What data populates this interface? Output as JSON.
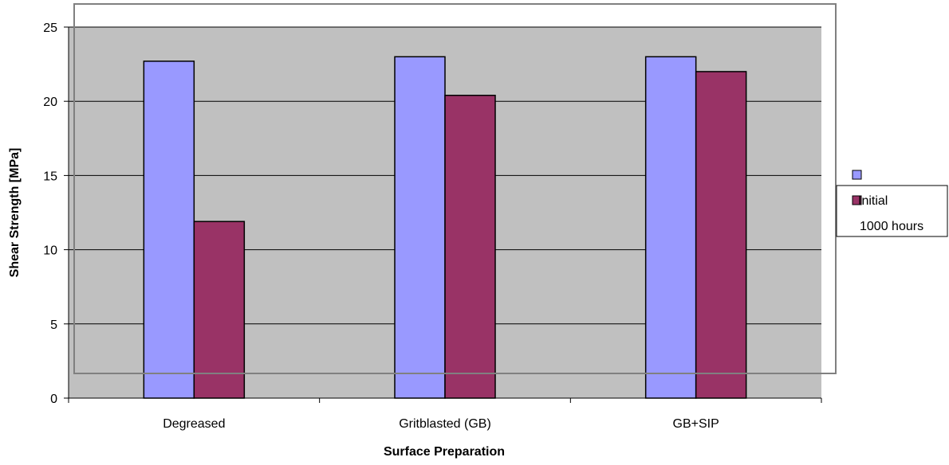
{
  "chart_data": {
    "type": "bar",
    "title": "",
    "xlabel": "Surface Preparation",
    "ylabel": "Shear Strength [MPa]",
    "ylim": [
      0,
      25
    ],
    "yticks": [
      0,
      5,
      10,
      15,
      20,
      25
    ],
    "categories": [
      "Degreased",
      "Gritblasted (GB)",
      "GB+SIP"
    ],
    "series": [
      {
        "name": "Initial",
        "values": [
          22.7,
          23.0,
          23.0
        ],
        "color": "#9999ff"
      },
      {
        "name": "1000 hours",
        "values": [
          11.9,
          20.4,
          22.0
        ],
        "color": "#993366"
      }
    ],
    "plot_background": "#c0c0c0",
    "grid": true,
    "legend_position": "right"
  }
}
